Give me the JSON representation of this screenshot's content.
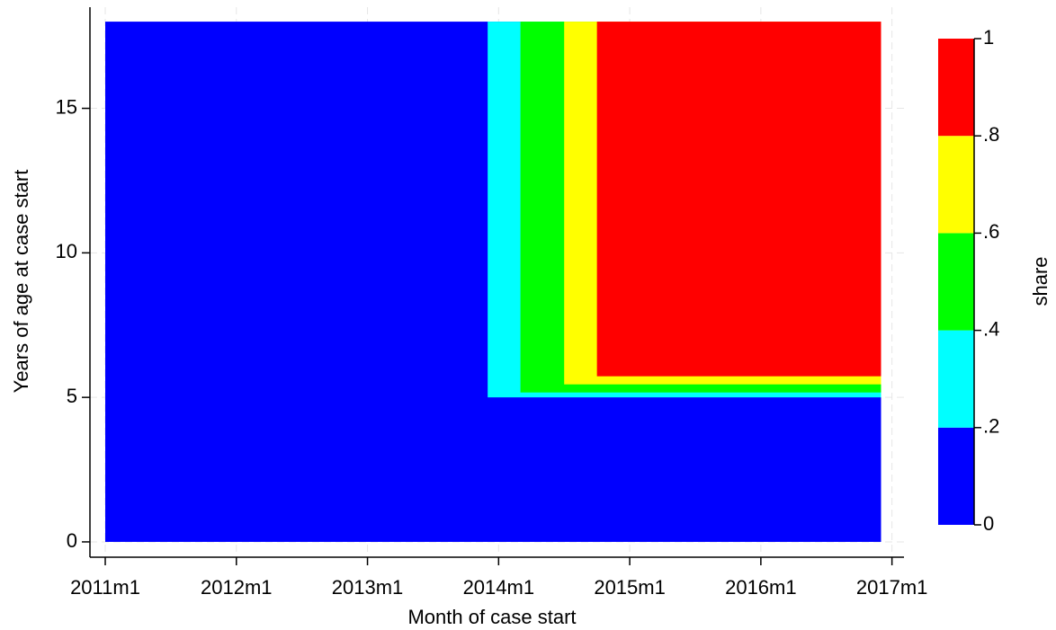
{
  "chart_data": {
    "type": "contour",
    "xlabel": "Month of case start",
    "ylabel": "Years of age at case start",
    "colorbar_label": "share",
    "xlim": [
      -1.4,
      73.1
    ],
    "ylim": [
      -0.53,
      18.5
    ],
    "xticks": [
      {
        "value": 0,
        "label": "2011m1"
      },
      {
        "value": 12,
        "label": "2012m1"
      },
      {
        "value": 24,
        "label": "2013m1"
      },
      {
        "value": 36,
        "label": "2014m1"
      },
      {
        "value": 48,
        "label": "2015m1"
      },
      {
        "value": 60,
        "label": "2016m1"
      },
      {
        "value": 72,
        "label": "2017m1"
      }
    ],
    "yticks": [
      0,
      5,
      10,
      15
    ],
    "grid": true,
    "x_range": [
      0,
      71
    ],
    "y_range": [
      0,
      18
    ],
    "bands": [
      {
        "from": 0,
        "to": 0.2,
        "color": "#0000ff"
      },
      {
        "from": 0.2,
        "to": 0.4,
        "color": "#00ffff"
      },
      {
        "from": 0.4,
        "to": 0.6,
        "color": "#00ff00"
      },
      {
        "from": 0.6,
        "to": 0.8,
        "color": "#ffff00"
      },
      {
        "from": 0.8,
        "to": 1,
        "color": "#ff0000"
      }
    ],
    "regions": [
      {
        "x_start": 0,
        "y_start": 0
      },
      {
        "x_start": 35,
        "y_start": 5
      },
      {
        "x_start": 38,
        "y_start": 5.17
      },
      {
        "x_start": 42,
        "y_start": 5.45
      },
      {
        "x_start": 45,
        "y_start": 5.73
      }
    ],
    "colorbar_lim": [
      0,
      1
    ],
    "colorbar_ticks": [
      0,
      {
        "value": 0.2,
        "label": ".2"
      },
      {
        "value": 0.4,
        "label": ".4"
      },
      {
        "value": 0.6,
        "label": ".6"
      },
      {
        "value": 0.8,
        "label": ".8"
      },
      1
    ]
  }
}
